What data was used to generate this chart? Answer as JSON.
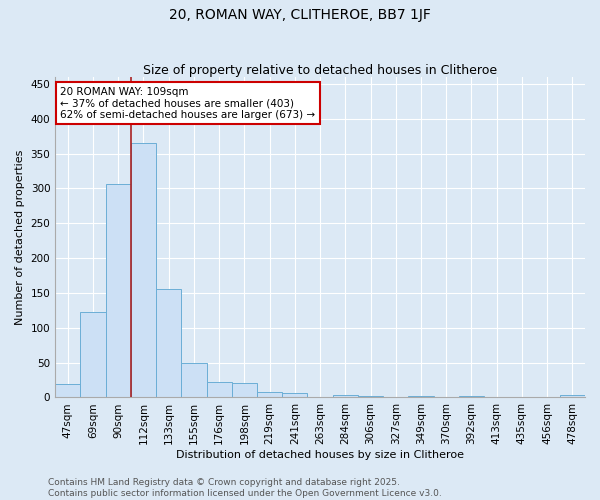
{
  "title": "20, ROMAN WAY, CLITHEROE, BB7 1JF",
  "subtitle": "Size of property relative to detached houses in Clitheroe",
  "xlabel": "Distribution of detached houses by size in Clitheroe",
  "ylabel": "Number of detached properties",
  "bins": [
    "47sqm",
    "69sqm",
    "90sqm",
    "112sqm",
    "133sqm",
    "155sqm",
    "176sqm",
    "198sqm",
    "219sqm",
    "241sqm",
    "263sqm",
    "284sqm",
    "306sqm",
    "327sqm",
    "349sqm",
    "370sqm",
    "392sqm",
    "413sqm",
    "435sqm",
    "456sqm",
    "478sqm"
  ],
  "values": [
    20,
    122,
    307,
    365,
    155,
    49,
    22,
    21,
    8,
    7,
    0,
    4,
    2,
    0,
    2,
    0,
    2,
    0,
    0,
    0,
    3
  ],
  "bar_color": "#cce0f5",
  "bar_edge_color": "#6baed6",
  "vline_color": "#aa2222",
  "annotation_text": "20 ROMAN WAY: 109sqm\n← 37% of detached houses are smaller (403)\n62% of semi-detached houses are larger (673) →",
  "annotation_box_color": "#ffffff",
  "annotation_box_edgecolor": "#cc0000",
  "ylim": [
    0,
    460
  ],
  "yticks": [
    0,
    50,
    100,
    150,
    200,
    250,
    300,
    350,
    400,
    450
  ],
  "bg_color": "#dce9f5",
  "grid_color": "#ffffff",
  "footer": "Contains HM Land Registry data © Crown copyright and database right 2025.\nContains public sector information licensed under the Open Government Licence v3.0.",
  "title_fontsize": 10,
  "subtitle_fontsize": 9,
  "axis_label_fontsize": 8,
  "tick_fontsize": 7.5,
  "annotation_fontsize": 7.5,
  "footer_fontsize": 6.5
}
